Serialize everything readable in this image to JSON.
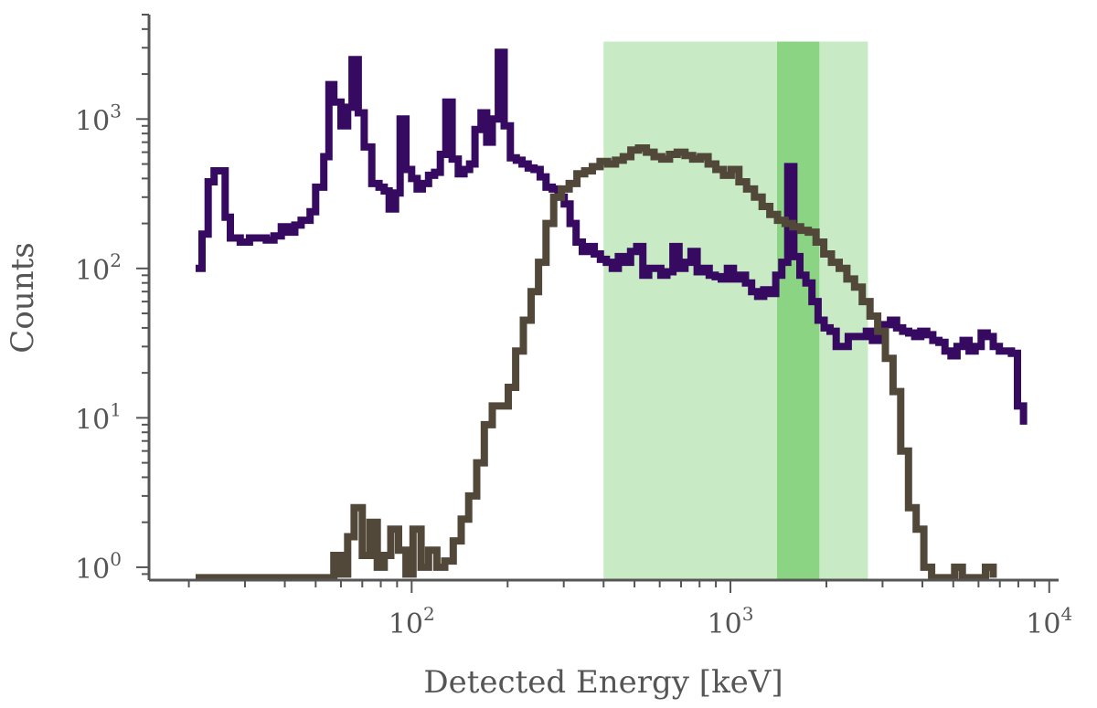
{
  "chart_data": {
    "type": "line",
    "title": "",
    "xlabel": "Detected Energy [keV]",
    "ylabel": "Counts",
    "x_scale": "log",
    "y_scale": "log",
    "xlim": [
      15,
      10700
    ],
    "ylim": [
      0.82,
      5000
    ],
    "x_ticks": [
      {
        "value": 100,
        "base": "10",
        "exp": "2"
      },
      {
        "value": 1000,
        "base": "10",
        "exp": "3"
      },
      {
        "value": 10000,
        "base": "10",
        "exp": "4"
      }
    ],
    "y_ticks": [
      {
        "value": 1,
        "base": "10",
        "exp": "0"
      },
      {
        "value": 10,
        "base": "10",
        "exp": "1"
      },
      {
        "value": 100,
        "base": "10",
        "exp": "2"
      },
      {
        "value": 1000,
        "base": "10",
        "exp": "3"
      }
    ],
    "shaded_regions": [
      {
        "x": [
          400,
          2700
        ],
        "y": [
          0.82,
          3300
        ],
        "color": "#c8ebc5"
      },
      {
        "x": [
          1400,
          1900
        ],
        "y": [
          0.82,
          3300
        ],
        "color": "#8bd484"
      }
    ],
    "series": [
      {
        "color": "#370a62",
        "steps": [
          [
            21,
            100
          ],
          [
            22,
            170
          ],
          [
            23,
            380
          ],
          [
            24,
            450
          ],
          [
            26,
            220
          ],
          [
            27,
            160
          ],
          [
            29,
            150
          ],
          [
            31,
            160
          ],
          [
            33,
            160
          ],
          [
            35,
            155
          ],
          [
            37,
            165
          ],
          [
            39,
            190
          ],
          [
            41,
            175
          ],
          [
            43,
            195
          ],
          [
            45,
            210
          ],
          [
            48,
            240
          ],
          [
            50,
            350
          ],
          [
            53,
            560
          ],
          [
            55,
            1700
          ],
          [
            57,
            1300
          ],
          [
            60,
            900
          ],
          [
            63,
            1200
          ],
          [
            65,
            2500
          ],
          [
            68,
            1100
          ],
          [
            71,
            650
          ],
          [
            75,
            370
          ],
          [
            79,
            350
          ],
          [
            82,
            330
          ],
          [
            85,
            250
          ],
          [
            89,
            320
          ],
          [
            92,
            1000
          ],
          [
            96,
            460
          ],
          [
            100,
            400
          ],
          [
            104,
            340
          ],
          [
            108,
            370
          ],
          [
            113,
            420
          ],
          [
            118,
            440
          ],
          [
            123,
            580
          ],
          [
            128,
            1300
          ],
          [
            134,
            540
          ],
          [
            140,
            430
          ],
          [
            146,
            460
          ],
          [
            152,
            500
          ],
          [
            158,
            850
          ],
          [
            165,
            1100
          ],
          [
            172,
            700
          ],
          [
            179,
            1000
          ],
          [
            187,
            2800
          ],
          [
            195,
            900
          ],
          [
            204,
            550
          ],
          [
            213,
            530
          ],
          [
            222,
            500
          ],
          [
            232,
            470
          ],
          [
            242,
            460
          ],
          [
            253,
            410
          ],
          [
            264,
            350
          ],
          [
            276,
            340
          ],
          [
            288,
            300
          ],
          [
            301,
            270
          ],
          [
            314,
            200
          ],
          [
            328,
            150
          ],
          [
            343,
            130
          ],
          [
            358,
            140
          ],
          [
            374,
            125
          ],
          [
            391,
            115
          ],
          [
            408,
            110
          ],
          [
            426,
            100
          ],
          [
            445,
            120
          ],
          [
            465,
            110
          ],
          [
            486,
            130
          ],
          [
            508,
            140
          ],
          [
            531,
            90
          ],
          [
            554,
            100
          ],
          [
            579,
            100
          ],
          [
            605,
            90
          ],
          [
            632,
            95
          ],
          [
            660,
            140
          ],
          [
            690,
            100
          ],
          [
            720,
            110
          ],
          [
            752,
            130
          ],
          [
            786,
            95
          ],
          [
            821,
            100
          ],
          [
            858,
            90
          ],
          [
            896,
            88
          ],
          [
            936,
            85
          ],
          [
            978,
            100
          ],
          [
            1022,
            85
          ],
          [
            1067,
            90
          ],
          [
            1115,
            80
          ],
          [
            1165,
            70
          ],
          [
            1217,
            65
          ],
          [
            1271,
            72
          ],
          [
            1328,
            68
          ],
          [
            1387,
            90
          ],
          [
            1449,
            110
          ],
          [
            1513,
            480
          ],
          [
            1581,
            120
          ],
          [
            1651,
            90
          ],
          [
            1725,
            80
          ],
          [
            1802,
            60
          ],
          [
            1883,
            45
          ],
          [
            1967,
            40
          ],
          [
            2054,
            38
          ],
          [
            2146,
            30
          ],
          [
            2242,
            30
          ],
          [
            2342,
            35
          ],
          [
            2446,
            35
          ],
          [
            2555,
            35
          ],
          [
            2669,
            38
          ],
          [
            2788,
            33
          ],
          [
            2913,
            38
          ],
          [
            3043,
            42
          ],
          [
            3178,
            45
          ],
          [
            3320,
            40
          ],
          [
            3468,
            38
          ],
          [
            3623,
            37
          ],
          [
            3785,
            35
          ],
          [
            3954,
            38
          ],
          [
            4130,
            36
          ],
          [
            4314,
            33
          ],
          [
            4507,
            32
          ],
          [
            4708,
            28
          ],
          [
            4918,
            26
          ],
          [
            5137,
            30
          ],
          [
            5366,
            33
          ],
          [
            5606,
            28
          ],
          [
            5856,
            30
          ],
          [
            6117,
            37
          ],
          [
            6390,
            35
          ],
          [
            6675,
            30
          ],
          [
            6973,
            28
          ],
          [
            7284,
            28
          ],
          [
            7609,
            27
          ],
          [
            7948,
            12
          ],
          [
            8303,
            9
          ]
        ]
      },
      {
        "color": "#524839",
        "steps": [
          [
            21,
            0.85
          ],
          [
            24,
            0.85
          ],
          [
            27,
            0.85
          ],
          [
            31,
            0.85
          ],
          [
            35,
            0.85
          ],
          [
            39,
            0.85
          ],
          [
            43,
            0.85
          ],
          [
            48,
            0.85
          ],
          [
            53,
            0.85
          ],
          [
            57,
            1.2
          ],
          [
            60,
            0.9
          ],
          [
            63,
            1.6
          ],
          [
            66,
            2.5
          ],
          [
            70,
            1.2
          ],
          [
            74,
            2.0
          ],
          [
            78,
            1.0
          ],
          [
            82,
            1.2
          ],
          [
            86,
            1.8
          ],
          [
            91,
            1.3
          ],
          [
            96,
            0.9
          ],
          [
            101,
            1.8
          ],
          [
            107,
            1.0
          ],
          [
            113,
            1.3
          ],
          [
            120,
            1.0
          ],
          [
            127,
            1.1
          ],
          [
            135,
            1.5
          ],
          [
            143,
            2.1
          ],
          [
            151,
            3.0
          ],
          [
            160,
            5.0
          ],
          [
            169,
            9.0
          ],
          [
            179,
            12.0
          ],
          [
            190,
            12.0
          ],
          [
            201,
            16.0
          ],
          [
            212,
            28.0
          ],
          [
            224,
            45.0
          ],
          [
            237,
            70.0
          ],
          [
            250,
            110.0
          ],
          [
            264,
            200.0
          ],
          [
            279,
            300.0
          ],
          [
            295,
            340.0
          ],
          [
            312,
            370.0
          ],
          [
            330,
            430.0
          ],
          [
            349,
            450.0
          ],
          [
            369,
            480.0
          ],
          [
            390,
            520.0
          ],
          [
            412,
            500.0
          ],
          [
            436,
            530.0
          ],
          [
            461,
            560.0
          ],
          [
            487,
            620.0
          ],
          [
            515,
            640.0
          ],
          [
            545,
            600.0
          ],
          [
            576,
            560.0
          ],
          [
            609,
            540.0
          ],
          [
            644,
            580.0
          ],
          [
            681,
            600.0
          ],
          [
            720,
            570.0
          ],
          [
            761,
            540.0
          ],
          [
            805,
            560.0
          ],
          [
            851,
            500.0
          ],
          [
            900,
            460.0
          ],
          [
            951,
            420.0
          ],
          [
            1006,
            460.0
          ],
          [
            1063,
            380.0
          ],
          [
            1124,
            340.0
          ],
          [
            1189,
            300.0
          ],
          [
            1257,
            260.0
          ],
          [
            1329,
            230.0
          ],
          [
            1405,
            210.0
          ],
          [
            1485,
            200.0
          ],
          [
            1570,
            190.0
          ],
          [
            1660,
            180.0
          ],
          [
            1755,
            175.0
          ],
          [
            1856,
            150.0
          ],
          [
            1962,
            125.0
          ],
          [
            2074,
            110.0
          ],
          [
            2193,
            100.0
          ],
          [
            2318,
            85.0
          ],
          [
            2451,
            75.0
          ],
          [
            2591,
            60.0
          ],
          [
            2740,
            48.0
          ],
          [
            2896,
            38.0
          ],
          [
            3062,
            25.0
          ],
          [
            3237,
            15.0
          ],
          [
            3422,
            6.0
          ],
          [
            3618,
            2.5
          ],
          [
            3825,
            1.8
          ],
          [
            4044,
            1.0
          ],
          [
            4275,
            0.85
          ],
          [
            4520,
            0.85
          ],
          [
            4778,
            0.85
          ],
          [
            5051,
            1.0
          ],
          [
            5340,
            0.85
          ],
          [
            5646,
            0.85
          ],
          [
            5969,
            0.85
          ],
          [
            6310,
            1.0
          ],
          [
            6671,
            0.85
          ]
        ]
      }
    ]
  }
}
